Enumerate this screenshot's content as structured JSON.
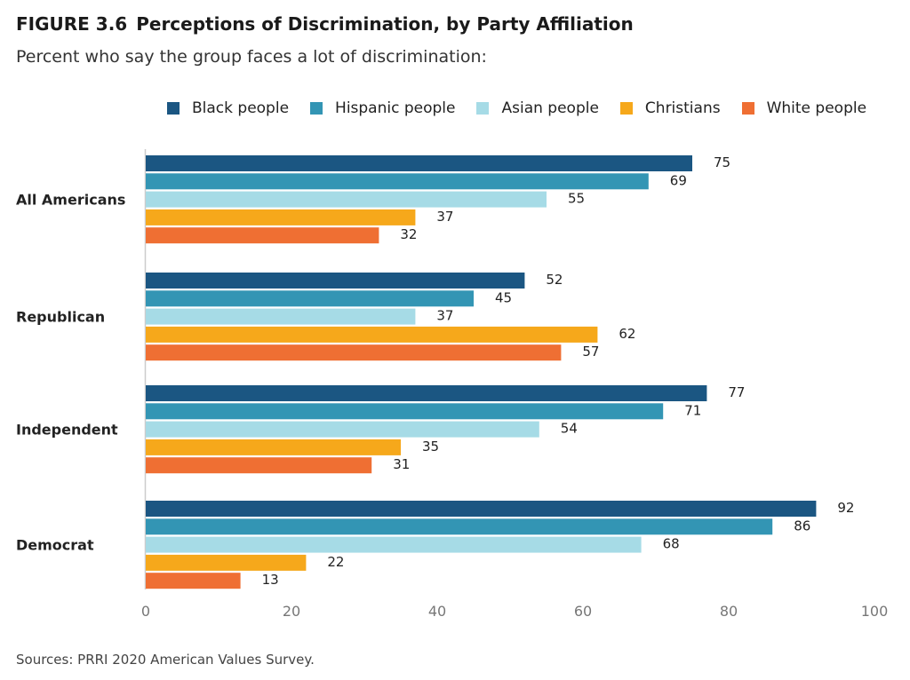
{
  "header": {
    "figure_number": "FIGURE 3.6",
    "title": "Perceptions of Discrimination, by Party Affiliation",
    "subtitle": "Percent who say the group faces a lot of discrimination:"
  },
  "source": "Sources: PRRI 2020 American Values Survey.",
  "chart_data": {
    "type": "bar",
    "orientation": "horizontal",
    "categories": [
      "All Americans",
      "Republican",
      "Independent",
      "Democrat"
    ],
    "series": [
      {
        "name": "Black people",
        "color": "#1b5682",
        "values": [
          75,
          52,
          77,
          92
        ]
      },
      {
        "name": "Hispanic people",
        "color": "#3395b4",
        "values": [
          69,
          45,
          71,
          86
        ]
      },
      {
        "name": "Asian people",
        "color": "#a6dbe6",
        "values": [
          55,
          37,
          54,
          68
        ]
      },
      {
        "name": "Christians",
        "color": "#f6a81b",
        "values": [
          37,
          62,
          35,
          22
        ]
      },
      {
        "name": "White people",
        "color": "#ef6f33",
        "values": [
          32,
          57,
          31,
          13
        ]
      }
    ],
    "xlim": [
      0,
      100
    ],
    "xticks": [
      0,
      20,
      40,
      60,
      80,
      100
    ],
    "data_labels": true,
    "grid": false,
    "legend_position": "top"
  }
}
